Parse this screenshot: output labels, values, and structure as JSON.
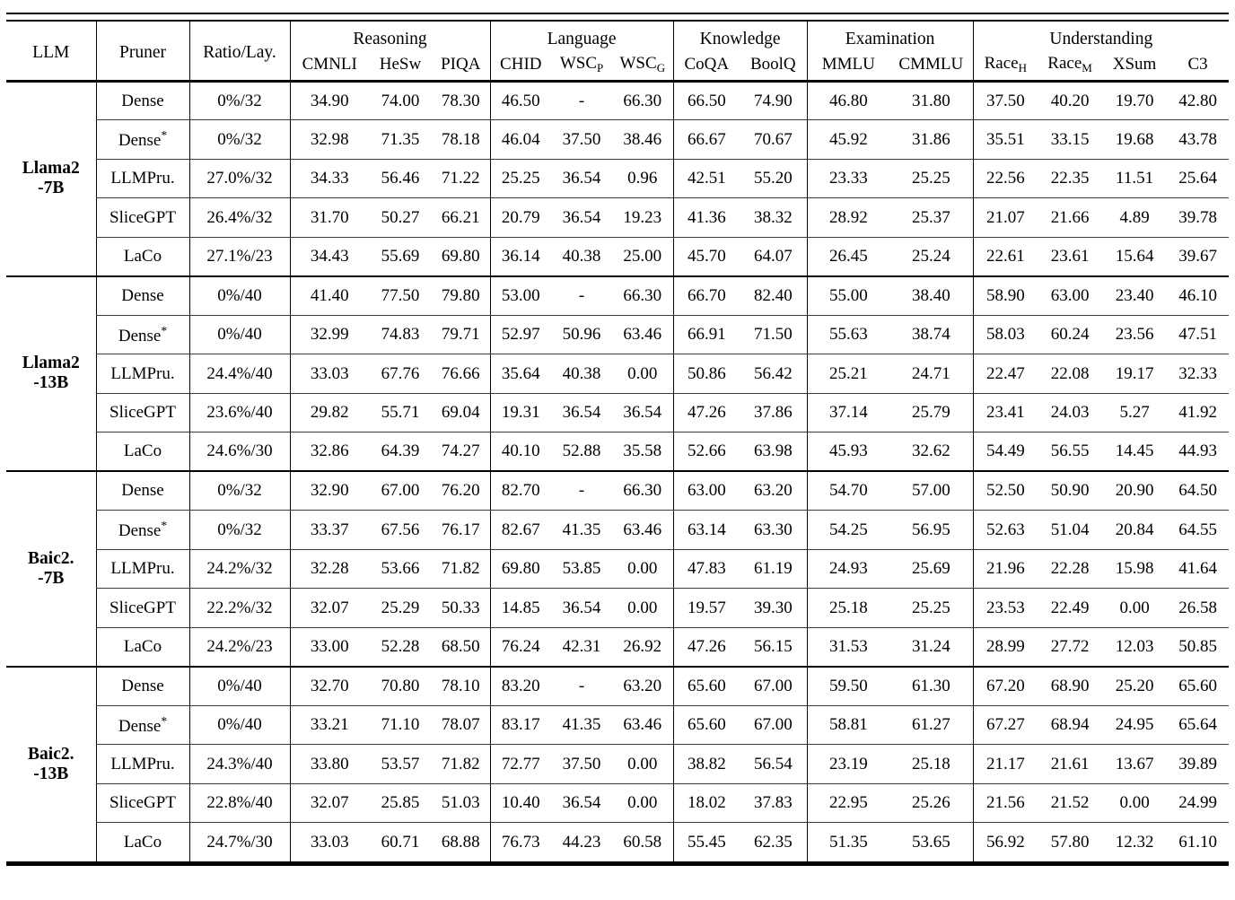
{
  "header": {
    "llm": "LLM",
    "pruner": "Pruner",
    "ratio": "Ratio/Lay.",
    "groups": [
      {
        "label": "Reasoning",
        "cols": [
          [
            "CMNLI",
            ""
          ],
          [
            "HeSw",
            ""
          ],
          [
            "PIQA",
            ""
          ]
        ]
      },
      {
        "label": "Language",
        "cols": [
          [
            "CHID",
            ""
          ],
          [
            "WSC",
            "P"
          ],
          [
            "WSC",
            "G"
          ]
        ]
      },
      {
        "label": "Knowledge",
        "cols": [
          [
            "CoQA",
            ""
          ],
          [
            "BoolQ",
            ""
          ]
        ]
      },
      {
        "label": "Examination",
        "cols": [
          [
            "MMLU",
            ""
          ],
          [
            "CMMLU",
            ""
          ]
        ]
      },
      {
        "label": "Understanding",
        "cols": [
          [
            "Race",
            "H"
          ],
          [
            "Race",
            "M"
          ],
          [
            "XSum",
            ""
          ],
          [
            "C3",
            ""
          ]
        ]
      }
    ]
  },
  "blocks": [
    {
      "llm_lines": [
        "Llama2",
        "-7B"
      ],
      "rows": [
        {
          "pruner": "Dense",
          "pruner_sup": "",
          "bold_label": false,
          "ratio": "0%/32",
          "values": [
            "34.90",
            "74.00",
            "78.30",
            "46.50",
            "-",
            "66.30",
            "66.50",
            "74.90",
            "46.80",
            "31.80",
            "37.50",
            "40.20",
            "19.70",
            "42.80"
          ],
          "bold": []
        },
        {
          "pruner": "Dense",
          "pruner_sup": "*",
          "bold_label": false,
          "ratio": "0%/32",
          "values": [
            "32.98",
            "71.35",
            "78.18",
            "46.04",
            "37.50",
            "38.46",
            "66.67",
            "70.67",
            "45.92",
            "31.86",
            "35.51",
            "33.15",
            "19.68",
            "43.78"
          ],
          "bold": []
        },
        {
          "pruner": "LLMPru.",
          "pruner_sup": "",
          "bold_label": false,
          "ratio": "27.0%/32",
          "values": [
            "34.33",
            "56.46",
            "71.22",
            "25.25",
            "36.54",
            "0.96",
            "42.51",
            "55.20",
            "23.33",
            "25.25",
            "22.56",
            "22.35",
            "11.51",
            "25.64"
          ],
          "bold": [
            1,
            2
          ]
        },
        {
          "pruner": "SliceGPT",
          "pruner_sup": "",
          "bold_label": false,
          "ratio": "26.4%/32",
          "values": [
            "31.70",
            "50.27",
            "66.21",
            "20.79",
            "36.54",
            "19.23",
            "41.36",
            "38.32",
            "28.92",
            "25.37",
            "21.07",
            "21.66",
            "4.89",
            "39.78"
          ],
          "bold": [
            8,
            9,
            13
          ]
        },
        {
          "pruner": "LaCo",
          "pruner_sup": "",
          "bold_label": true,
          "ratio": "27.1%/23",
          "values": [
            "34.43",
            "55.69",
            "69.80",
            "36.14",
            "40.38",
            "25.00",
            "45.70",
            "64.07",
            "26.45",
            "25.24",
            "22.61",
            "23.61",
            "15.64",
            "39.67"
          ],
          "bold": [
            0,
            3,
            4,
            5,
            6,
            7,
            10,
            11,
            12
          ]
        }
      ]
    },
    {
      "llm_lines": [
        "Llama2",
        "-13B"
      ],
      "rows": [
        {
          "pruner": "Dense",
          "pruner_sup": "",
          "bold_label": false,
          "ratio": "0%/40",
          "values": [
            "41.40",
            "77.50",
            "79.80",
            "53.00",
            "-",
            "66.30",
            "66.70",
            "82.40",
            "55.00",
            "38.40",
            "58.90",
            "63.00",
            "23.40",
            "46.10"
          ],
          "bold": []
        },
        {
          "pruner": "Dense",
          "pruner_sup": "*",
          "bold_label": false,
          "ratio": "0%/40",
          "values": [
            "32.99",
            "74.83",
            "79.71",
            "52.97",
            "50.96",
            "63.46",
            "66.91",
            "71.50",
            "55.63",
            "38.74",
            "58.03",
            "60.24",
            "23.56",
            "47.51"
          ],
          "bold": []
        },
        {
          "pruner": "LLMPru.",
          "pruner_sup": "",
          "bold_label": false,
          "ratio": "24.4%/40",
          "values": [
            "33.03",
            "67.76",
            "76.66",
            "35.64",
            "40.38",
            "0.00",
            "50.86",
            "56.42",
            "25.21",
            "24.71",
            "22.47",
            "22.08",
            "19.17",
            "32.33"
          ],
          "bold": [
            0,
            1,
            2,
            12
          ]
        },
        {
          "pruner": "SliceGPT",
          "pruner_sup": "",
          "bold_label": false,
          "ratio": "23.6%/40",
          "values": [
            "29.82",
            "55.71",
            "69.04",
            "19.31",
            "36.54",
            "36.54",
            "47.26",
            "37.86",
            "37.14",
            "25.79",
            "23.41",
            "24.03",
            "5.27",
            "41.92"
          ],
          "bold": [
            5
          ]
        },
        {
          "pruner": "LaCo",
          "pruner_sup": "",
          "bold_label": true,
          "ratio": "24.6%/30",
          "values": [
            "32.86",
            "64.39",
            "74.27",
            "40.10",
            "52.88",
            "35.58",
            "52.66",
            "63.98",
            "45.93",
            "32.62",
            "54.49",
            "56.55",
            "14.45",
            "44.93"
          ],
          "bold": [
            3,
            4,
            6,
            7,
            8,
            9,
            10,
            11,
            13
          ]
        }
      ]
    },
    {
      "llm_lines": [
        "Baic2.",
        "-7B"
      ],
      "rows": [
        {
          "pruner": "Dense",
          "pruner_sup": "",
          "bold_label": false,
          "ratio": "0%/32",
          "values": [
            "32.90",
            "67.00",
            "76.20",
            "82.70",
            "-",
            "66.30",
            "63.00",
            "63.20",
            "54.70",
            "57.00",
            "52.50",
            "50.90",
            "20.90",
            "64.50"
          ],
          "bold": []
        },
        {
          "pruner": "Dense",
          "pruner_sup": "*",
          "bold_label": false,
          "ratio": "0%/32",
          "values": [
            "33.37",
            "67.56",
            "76.17",
            "82.67",
            "41.35",
            "63.46",
            "63.14",
            "63.30",
            "54.25",
            "56.95",
            "52.63",
            "51.04",
            "20.84",
            "64.55"
          ],
          "bold": []
        },
        {
          "pruner": "LLMPru.",
          "pruner_sup": "",
          "bold_label": false,
          "ratio": "24.2%/32",
          "values": [
            "32.28",
            "53.66",
            "71.82",
            "69.80",
            "53.85",
            "0.00",
            "47.83",
            "61.19",
            "24.93",
            "25.69",
            "21.96",
            "22.28",
            "15.98",
            "41.64"
          ],
          "bold": [
            1,
            2,
            4,
            6,
            7,
            12
          ]
        },
        {
          "pruner": "SliceGPT",
          "pruner_sup": "",
          "bold_label": false,
          "ratio": "22.2%/32",
          "values": [
            "32.07",
            "25.29",
            "50.33",
            "14.85",
            "36.54",
            "0.00",
            "19.57",
            "39.30",
            "25.18",
            "25.25",
            "23.53",
            "22.49",
            "0.00",
            "26.58"
          ],
          "bold": []
        },
        {
          "pruner": "LaCo",
          "pruner_sup": "",
          "bold_label": true,
          "ratio": "24.2%/23",
          "values": [
            "33.00",
            "52.28",
            "68.50",
            "76.24",
            "42.31",
            "26.92",
            "47.26",
            "56.15",
            "31.53",
            "31.24",
            "28.99",
            "27.72",
            "12.03",
            "50.85"
          ],
          "bold": [
            0,
            3,
            5,
            8,
            9,
            10,
            11,
            13
          ]
        }
      ]
    },
    {
      "llm_lines": [
        "Baic2.",
        "-13B"
      ],
      "rows": [
        {
          "pruner": "Dense",
          "pruner_sup": "",
          "bold_label": false,
          "ratio": "0%/40",
          "values": [
            "32.70",
            "70.80",
            "78.10",
            "83.20",
            "-",
            "63.20",
            "65.60",
            "67.00",
            "59.50",
            "61.30",
            "67.20",
            "68.90",
            "25.20",
            "65.60"
          ],
          "bold": []
        },
        {
          "pruner": "Dense",
          "pruner_sup": "*",
          "bold_label": false,
          "ratio": "0%/40",
          "values": [
            "33.21",
            "71.10",
            "78.07",
            "83.17",
            "41.35",
            "63.46",
            "65.60",
            "67.00",
            "58.81",
            "61.27",
            "67.27",
            "68.94",
            "24.95",
            "65.64"
          ],
          "bold": []
        },
        {
          "pruner": "LLMPru.",
          "pruner_sup": "",
          "bold_label": false,
          "ratio": "24.3%/40",
          "values": [
            "33.80",
            "53.57",
            "71.82",
            "72.77",
            "37.50",
            "0.00",
            "38.82",
            "56.54",
            "23.19",
            "25.18",
            "21.17",
            "21.61",
            "13.67",
            "39.89"
          ],
          "bold": [
            0,
            2,
            12
          ]
        },
        {
          "pruner": "SliceGPT",
          "pruner_sup": "",
          "bold_label": false,
          "ratio": "22.8%/40",
          "values": [
            "32.07",
            "25.85",
            "51.03",
            "10.40",
            "36.54",
            "0.00",
            "18.02",
            "37.83",
            "22.95",
            "25.26",
            "21.56",
            "21.52",
            "0.00",
            "24.99"
          ],
          "bold": []
        },
        {
          "pruner": "LaCo",
          "pruner_sup": "",
          "bold_label": true,
          "ratio": "24.7%/30",
          "values": [
            "33.03",
            "60.71",
            "68.88",
            "76.73",
            "44.23",
            "60.58",
            "55.45",
            "62.35",
            "51.35",
            "53.65",
            "56.92",
            "57.80",
            "12.32",
            "61.10"
          ],
          "bold": [
            1,
            3,
            4,
            5,
            6,
            7,
            8,
            9,
            10,
            11,
            13
          ]
        }
      ]
    }
  ]
}
